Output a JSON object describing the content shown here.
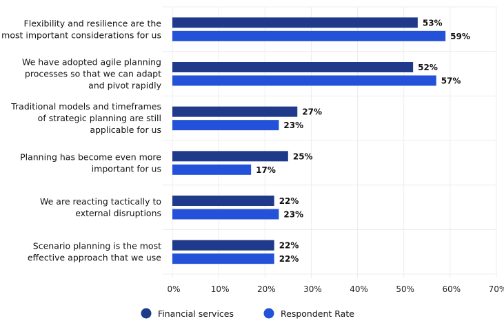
{
  "chart_data": {
    "type": "bar",
    "orientation": "horizontal",
    "categories": [
      [
        "Flexibility and resilience are the",
        "most important considerations for us"
      ],
      [
        "We have adopted agile planning",
        "processes so that we can adapt",
        "and pivot rapidly"
      ],
      [
        "Traditional models and timeframes",
        "of strategic planning are still",
        "applicable for us"
      ],
      [
        "Planning has become even more",
        "important for us"
      ],
      [
        "We are reacting tactically to",
        "external disruptions"
      ],
      [
        "Scenario planning is the most",
        "effective approach that we use"
      ]
    ],
    "series": [
      {
        "name": "Financial services",
        "color": "#1f3a8a",
        "values": [
          53,
          52,
          27,
          25,
          22,
          22
        ]
      },
      {
        "name": "Respondent Rate",
        "color": "#2352d8",
        "values": [
          59,
          57,
          23,
          17,
          23,
          22
        ]
      }
    ],
    "xlim": [
      0,
      70
    ],
    "xticks": [
      "0%",
      "10%",
      "20%",
      "30%",
      "40%",
      "50%",
      "60%",
      "70%"
    ],
    "value_suffix": "%",
    "grid": true,
    "legend": "bottom",
    "title": "",
    "xlabel": "",
    "ylabel": ""
  }
}
